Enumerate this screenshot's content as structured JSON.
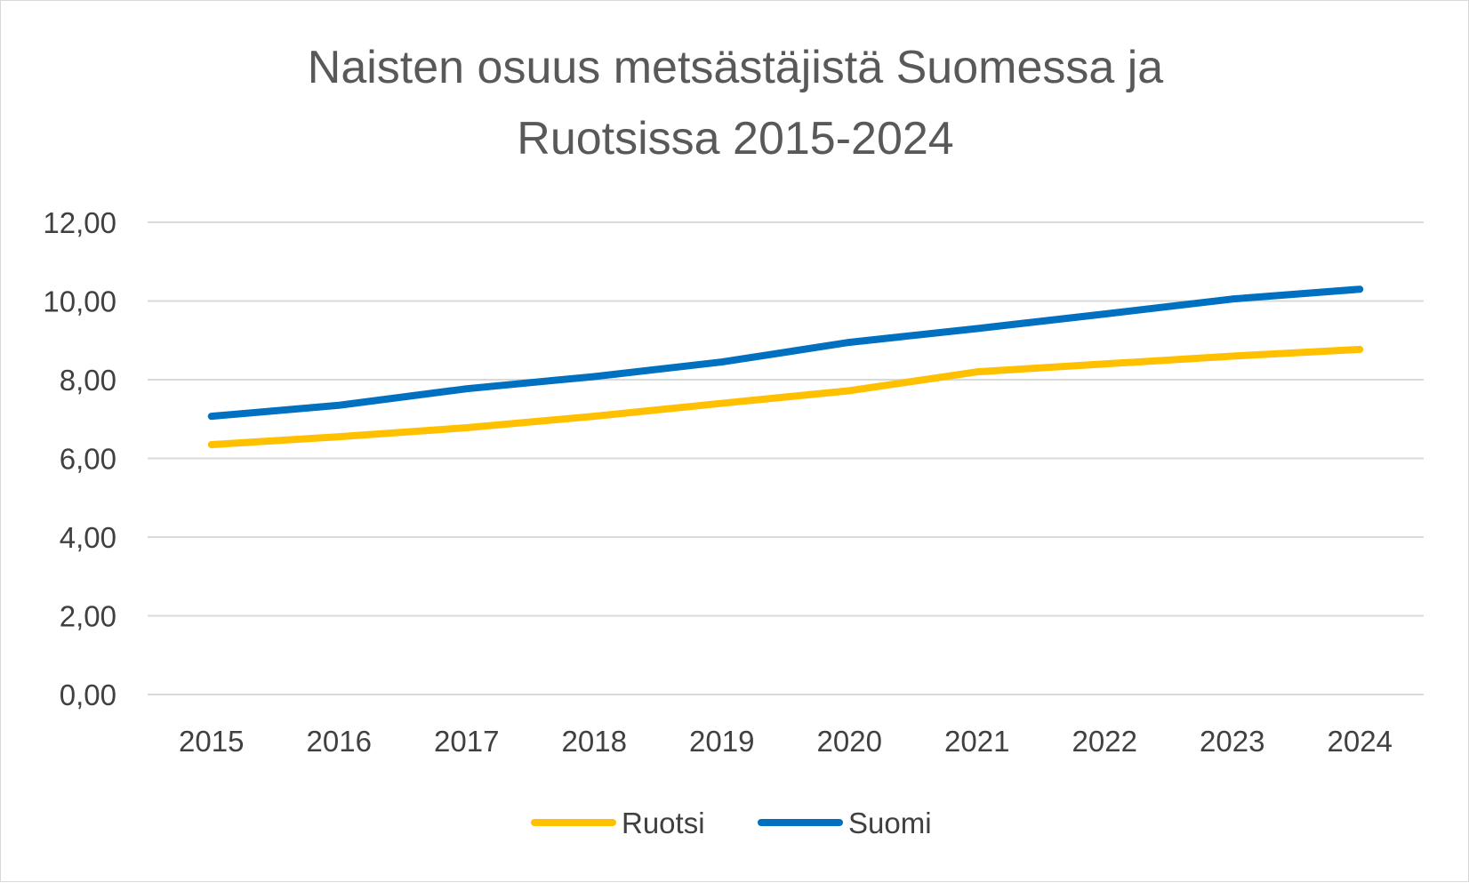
{
  "chart_data": {
    "type": "line",
    "title_lines": [
      "Naisten osuus metsästäjistä Suomessa ja",
      "Ruotsissa 2015-2024"
    ],
    "categories": [
      "2015",
      "2016",
      "2017",
      "2018",
      "2019",
      "2020",
      "2021",
      "2022",
      "2023",
      "2024"
    ],
    "y_ticks": [
      "0,00",
      "2,00",
      "4,00",
      "6,00",
      "8,00",
      "10,00",
      "12,00"
    ],
    "ylim": [
      0,
      12
    ],
    "grid": true,
    "legend_position": "bottom",
    "series": [
      {
        "name": "Ruotsi",
        "color": "#FFC000",
        "values": [
          6.35,
          6.55,
          6.78,
          7.07,
          7.4,
          7.72,
          8.2,
          8.4,
          8.6,
          8.77
        ]
      },
      {
        "name": "Suomi",
        "color": "#0070C0",
        "values": [
          7.07,
          7.35,
          7.77,
          8.08,
          8.45,
          8.95,
          9.3,
          9.67,
          10.05,
          10.3
        ]
      }
    ]
  }
}
